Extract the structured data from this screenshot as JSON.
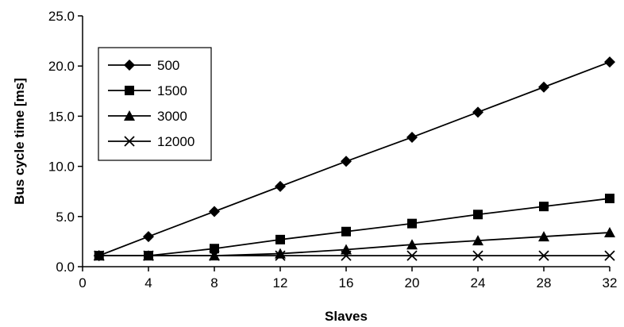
{
  "chart_data": {
    "type": "line",
    "title": "",
    "xlabel": "Slaves",
    "ylabel": "Bus cycle time [ms]",
    "xlim": [
      0,
      32
    ],
    "ylim": [
      0,
      25
    ],
    "x_ticks": [
      "0",
      "4",
      "8",
      "12",
      "16",
      "20",
      "24",
      "28",
      "32"
    ],
    "y_ticks": [
      "0.0",
      "5.0",
      "10.0",
      "15.0",
      "20.0",
      "25.0"
    ],
    "x": [
      1,
      4,
      8,
      12,
      16,
      20,
      24,
      28,
      32
    ],
    "grid": false,
    "legend_position": "top-left",
    "series": [
      {
        "name": "500",
        "marker": "diamond",
        "values": [
          1.1,
          3.0,
          5.5,
          8.0,
          10.5,
          12.9,
          15.4,
          17.9,
          20.4
        ]
      },
      {
        "name": "1500",
        "marker": "square",
        "values": [
          1.1,
          1.1,
          1.8,
          2.7,
          3.5,
          4.3,
          5.2,
          6.0,
          6.8
        ]
      },
      {
        "name": "3000",
        "marker": "triangle",
        "values": [
          1.1,
          1.1,
          1.1,
          1.3,
          1.7,
          2.2,
          2.6,
          3.0,
          3.4
        ]
      },
      {
        "name": "12000",
        "marker": "x",
        "values": [
          1.1,
          1.1,
          1.1,
          1.1,
          1.1,
          1.1,
          1.1,
          1.1,
          1.1
        ]
      }
    ],
    "line_color": "#000000"
  }
}
